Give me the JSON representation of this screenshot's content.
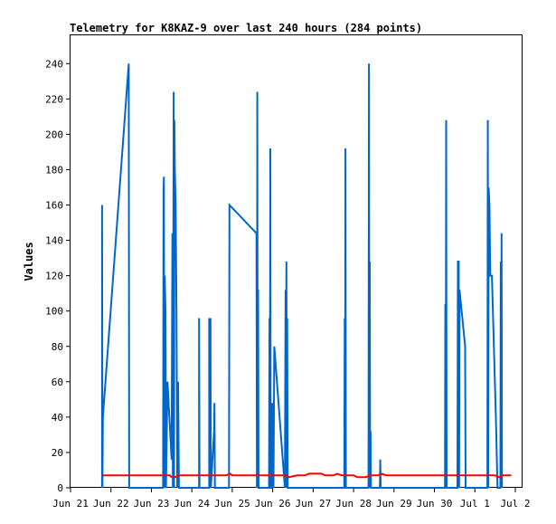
{
  "chart_data": {
    "type": "line",
    "title": "Telemetry for K8KAZ-9 over last 240 hours (284 points)",
    "ylabel": "Values",
    "xlabel": "",
    "ylim": [
      0,
      256
    ],
    "xlim": [
      0,
      11
    ],
    "yticks": [
      0,
      20,
      40,
      60,
      80,
      100,
      120,
      140,
      160,
      180,
      200,
      220,
      240
    ],
    "xticks": [
      {
        "x": 0,
        "label": "Jun 21"
      },
      {
        "x": 1,
        "label": "Jun 22"
      },
      {
        "x": 2,
        "label": "Jun 23"
      },
      {
        "x": 3,
        "label": "Jun 24"
      },
      {
        "x": 4,
        "label": "Jun 25"
      },
      {
        "x": 5,
        "label": "Jun 26"
      },
      {
        "x": 6,
        "label": "Jun 27"
      },
      {
        "x": 7,
        "label": "Jun 28"
      },
      {
        "x": 8,
        "label": "Jun 29"
      },
      {
        "x": 9,
        "label": "Jun 30"
      },
      {
        "x": 10,
        "label": "Jul 1"
      },
      {
        "x": 11,
        "label": "Jul 2"
      }
    ],
    "grid": false,
    "legend": "none",
    "series": [
      {
        "color": "#0066cc",
        "points": [
          [
            0.78,
            0
          ],
          [
            0.78,
            160
          ],
          [
            0.79,
            0
          ],
          [
            0.8,
            40
          ],
          [
            1.44,
            240
          ],
          [
            1.45,
            0
          ],
          [
            2.29,
            0
          ],
          [
            2.3,
            168
          ],
          [
            2.31,
            176
          ],
          [
            2.32,
            0
          ],
          [
            2.33,
            120
          ],
          [
            2.35,
            100
          ],
          [
            2.36,
            0
          ],
          [
            2.4,
            60
          ],
          [
            2.5,
            16
          ],
          [
            2.52,
            144
          ],
          [
            2.53,
            0
          ],
          [
            2.55,
            224
          ],
          [
            2.56,
            0
          ],
          [
            2.57,
            208
          ],
          [
            2.58,
            180
          ],
          [
            2.6,
            160
          ],
          [
            2.62,
            100
          ],
          [
            2.64,
            0
          ],
          [
            2.66,
            60
          ],
          [
            2.68,
            0
          ],
          [
            3.18,
            0
          ],
          [
            3.18,
            96
          ],
          [
            3.19,
            0
          ],
          [
            3.43,
            0
          ],
          [
            3.43,
            96
          ],
          [
            3.45,
            0
          ],
          [
            3.46,
            96
          ],
          [
            3.47,
            0
          ],
          [
            3.55,
            32
          ],
          [
            3.56,
            48
          ],
          [
            3.57,
            0
          ],
          [
            3.92,
            0
          ],
          [
            3.93,
            160
          ],
          [
            4.6,
            144
          ],
          [
            4.61,
            0
          ],
          [
            4.62,
            224
          ],
          [
            4.63,
            0
          ],
          [
            4.64,
            112
          ],
          [
            4.65,
            0
          ],
          [
            4.91,
            0
          ],
          [
            4.92,
            96
          ],
          [
            4.93,
            0
          ],
          [
            4.94,
            192
          ],
          [
            4.95,
            0
          ],
          [
            4.97,
            0
          ],
          [
            4.98,
            48
          ],
          [
            4.99,
            0
          ],
          [
            5.0,
            48
          ],
          [
            5.02,
            0
          ],
          [
            5.04,
            80
          ],
          [
            5.3,
            0
          ],
          [
            5.32,
            112
          ],
          [
            5.33,
            0
          ],
          [
            5.34,
            128
          ],
          [
            5.35,
            0
          ],
          [
            5.36,
            96
          ],
          [
            5.37,
            0
          ],
          [
            6.77,
            0
          ],
          [
            6.78,
            96
          ],
          [
            6.79,
            0
          ],
          [
            6.8,
            192
          ],
          [
            6.81,
            0
          ],
          [
            7.37,
            0
          ],
          [
            7.38,
            240
          ],
          [
            7.39,
            0
          ],
          [
            7.4,
            128
          ],
          [
            7.41,
            0
          ],
          [
            7.42,
            32
          ],
          [
            7.43,
            0
          ],
          [
            7.65,
            0
          ],
          [
            7.66,
            16
          ],
          [
            7.67,
            0
          ],
          [
            9.26,
            0
          ],
          [
            9.27,
            104
          ],
          [
            9.28,
            0
          ],
          [
            9.29,
            208
          ],
          [
            9.3,
            0
          ],
          [
            9.57,
            0
          ],
          [
            9.58,
            128
          ],
          [
            9.6,
            128
          ],
          [
            9.61,
            0
          ],
          [
            9.62,
            112
          ],
          [
            9.76,
            80
          ],
          [
            9.77,
            0
          ],
          [
            10.31,
            0
          ],
          [
            10.32,
            208
          ],
          [
            10.33,
            0
          ],
          [
            10.34,
            170
          ],
          [
            10.36,
            160
          ],
          [
            10.38,
            120
          ],
          [
            10.42,
            120
          ],
          [
            10.52,
            40
          ],
          [
            10.56,
            0
          ],
          [
            10.63,
            0
          ],
          [
            10.64,
            128
          ],
          [
            10.65,
            0
          ],
          [
            10.66,
            144
          ],
          [
            10.67,
            0
          ]
        ]
      },
      {
        "color": "#ff0000",
        "points": [
          [
            0.78,
            7
          ],
          [
            2.4,
            7
          ],
          [
            2.46,
            7
          ],
          [
            2.5,
            6
          ],
          [
            2.6,
            6
          ],
          [
            2.65,
            7
          ],
          [
            3.6,
            7
          ],
          [
            3.85,
            7
          ],
          [
            3.95,
            8
          ],
          [
            4.0,
            7
          ],
          [
            5.32,
            7
          ],
          [
            5.4,
            6
          ],
          [
            5.6,
            7
          ],
          [
            5.8,
            7
          ],
          [
            5.9,
            8
          ],
          [
            6.2,
            8
          ],
          [
            6.3,
            7
          ],
          [
            6.5,
            7
          ],
          [
            6.6,
            8
          ],
          [
            6.7,
            7
          ],
          [
            7.0,
            7
          ],
          [
            7.1,
            6
          ],
          [
            7.3,
            6
          ],
          [
            7.4,
            7
          ],
          [
            7.6,
            7
          ],
          [
            7.7,
            8
          ],
          [
            7.8,
            7
          ],
          [
            10.3,
            7
          ],
          [
            10.5,
            7
          ],
          [
            10.6,
            6
          ],
          [
            10.7,
            7
          ],
          [
            10.9,
            7
          ]
        ]
      }
    ]
  }
}
